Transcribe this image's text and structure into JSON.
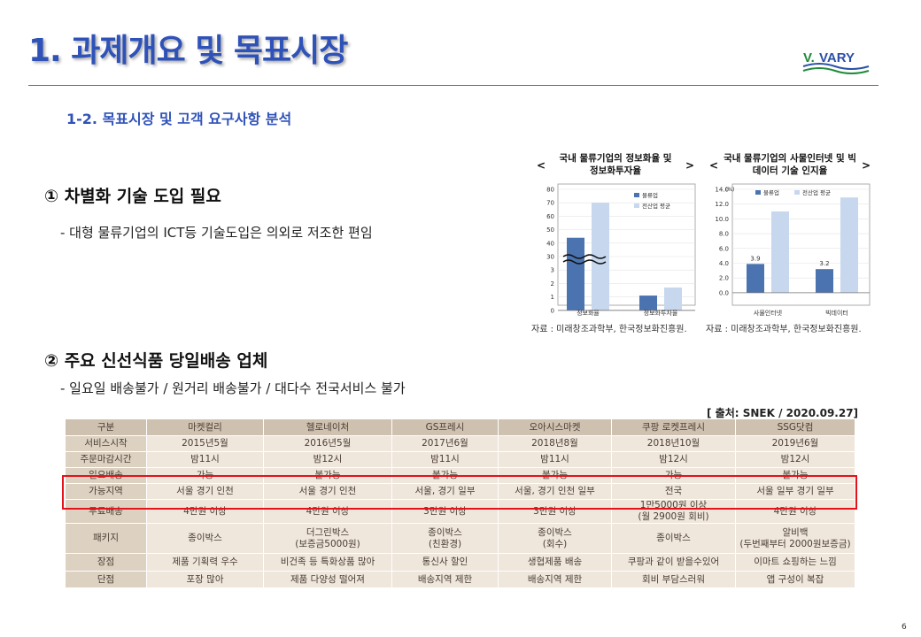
{
  "slide": {
    "title": "1. 과제개요 및 목표시장",
    "subtitle": "1-2. 목표시장 및 고객 요구사항 분석",
    "page_number": "6",
    "logo_text": "V. VARY"
  },
  "section1": {
    "heading": "①  차별화 기술 도입 필요",
    "desc": "- 대형 물류기업의 ICT등 기술도입은 의외로 저조한 편임"
  },
  "section2": {
    "heading": "②  주요 신선식품 당일배송 업체",
    "desc": "- 일요일 배송불가 / 원거리 배송불가 / 대다수 전국서비스 불가",
    "source": "[ 출처: SNEK / 2020.09.27]"
  },
  "chart_data": [
    {
      "type": "bar",
      "title": "국내 물류기업의 정보화율 및 정보화투자율",
      "categories": [
        "정보화율",
        "정보화투자율"
      ],
      "series": [
        {
          "name": "물류업",
          "values": [
            44,
            1.1
          ],
          "color": "#4a73b0"
        },
        {
          "name": "전산업 평균",
          "values": [
            70,
            1.7
          ],
          "color": "#c6d7ee"
        }
      ],
      "ylim": [
        0,
        80
      ],
      "yticks": [
        "80",
        "70",
        "60",
        "50",
        "40",
        "30",
        "3",
        "2",
        "1",
        "0"
      ],
      "axis_break": true,
      "source": "자료 : 미래창조과학부, 한국정보화진흥원."
    },
    {
      "type": "bar",
      "title": "국내 물류기업의 사물인터넷 및 빅데이터 기술 인지율",
      "categories": [
        "사물인터넷",
        "빅데이터"
      ],
      "series": [
        {
          "name": "물류업",
          "values": [
            3.9,
            3.2
          ],
          "color": "#4a73b0"
        },
        {
          "name": "전산업 평균",
          "values": [
            11.0,
            12.9
          ],
          "color": "#c6d7ee"
        }
      ],
      "data_labels": [
        "3.9",
        "3.2"
      ],
      "ylim": [
        0,
        14.0
      ],
      "yticks": [
        "14.0",
        "12.0",
        "10.0",
        "8.0",
        "6.0",
        "4.0",
        "2.0",
        "0.0"
      ],
      "unit": "(%)",
      "source": "자료 : 미래창조과학부, 한국정보화진흥원."
    }
  ],
  "table": {
    "header": [
      "구분",
      "마켓컬리",
      "헬로네이처",
      "GS프레시",
      "오아시스마켓",
      "쿠팡 로켓프레시",
      "SSG닷컴"
    ],
    "rows": [
      [
        "서비스시작",
        "2015년5월",
        "2016년5월",
        "2017년6월",
        "2018년8월",
        "2018년10월",
        "2019년6월"
      ],
      [
        "주문마감시간",
        "밤11시",
        "밤12시",
        "밤11시",
        "밤11시",
        "밤12시",
        "밤12시"
      ],
      [
        "일요배송",
        "가능",
        "불가능",
        "불가능",
        "불가능",
        "가능",
        "불가능"
      ],
      [
        "가능지역",
        "서울 경기 인천",
        "서울 경기 인천",
        "서울, 경기 일부",
        "서울, 경기 인천 일부",
        "전국",
        "서울 일부 경기 일부"
      ],
      [
        "무료배송",
        "4만원 이상",
        "4만원 이상",
        "3만원 이상",
        "3만원 이상",
        "1만5000원 이상\n(월 2900원 회비)",
        "4만원 이상"
      ],
      [
        "패키지",
        "종이박스",
        "더그린박스\n(보증금5000원)",
        "종이박스\n(친환경)",
        "종이박스\n(회수)",
        "종이박스",
        "알비백\n(두번째부터 2000원보증금)"
      ],
      [
        "장점",
        "제품 기획력 우수",
        "비건족 등 특화상품 많아",
        "통신사 할인",
        "생협제품 배송",
        "쿠팡과 같이 받을수있어",
        "이마트 쇼핑하는 느낌"
      ],
      [
        "단점",
        "포장 많아",
        "제품 다양성 떨어져",
        "배송지역 제한",
        "배송지역 제한",
        "회비 부담스러워",
        "앱 구성이 복잡"
      ]
    ]
  }
}
